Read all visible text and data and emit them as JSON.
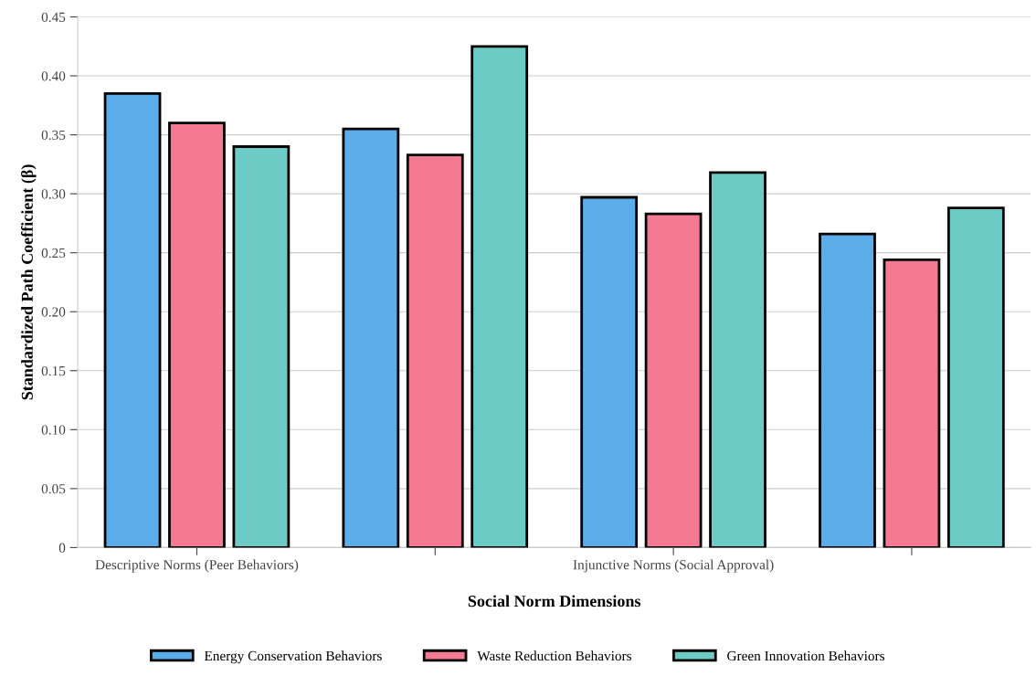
{
  "chart_data": {
    "type": "bar",
    "xlabel": "Social Norm Dimensions",
    "ylabel": "Standardized Path Coefficient (β)",
    "categories": [
      "Descriptive Norms (Peer Behaviors)",
      null,
      "Injunctive Norms (Social Approval)",
      null
    ],
    "series": [
      {
        "name": "Energy Conservation Behaviors",
        "color": "#5aade9",
        "values": [
          0.385,
          0.355,
          0.297,
          0.266
        ]
      },
      {
        "name": "Waste Reduction Behaviors",
        "color": "#f47a94",
        "values": [
          0.36,
          0.333,
          0.283,
          0.244
        ]
      },
      {
        "name": "Green Innovation Behaviors",
        "color": "#6ccbc4",
        "values": [
          0.34,
          0.425,
          0.318,
          0.288
        ]
      }
    ],
    "ylim": [
      0,
      0.45
    ],
    "yticks": [
      0,
      {
        "value": 0.05,
        "label": "0.05"
      },
      {
        "value": 0.1,
        "label": "0.10"
      },
      {
        "value": 0.15,
        "label": "0.15"
      },
      {
        "value": 0.2,
        "label": "0.20"
      },
      {
        "value": 0.25,
        "label": "0.25"
      },
      {
        "value": 0.3,
        "label": "0.30"
      },
      {
        "value": 0.35,
        "label": "0.35"
      },
      {
        "value": 0.4,
        "label": "0.40"
      },
      {
        "value": 0.45,
        "label": "0.45"
      }
    ],
    "grid": "y",
    "legend": "bottom"
  }
}
